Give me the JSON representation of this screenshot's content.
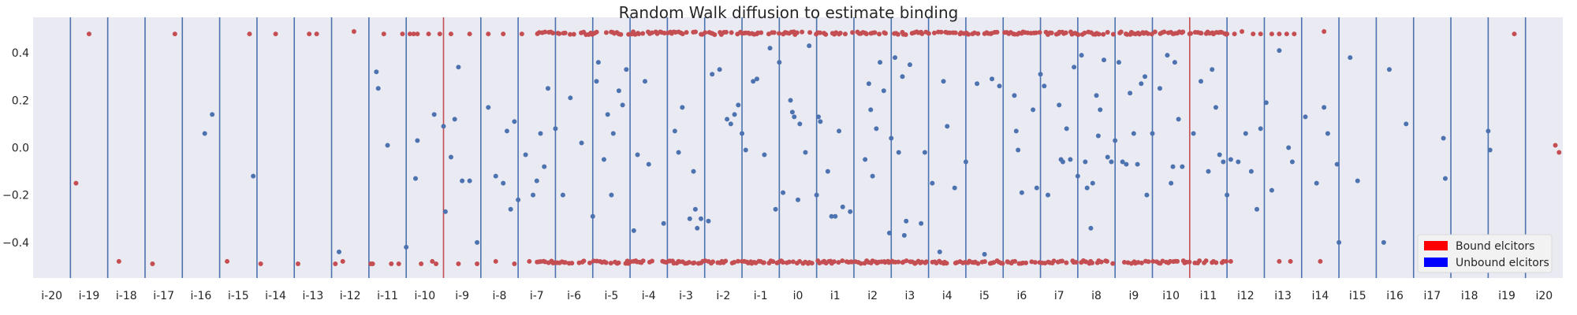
{
  "chart_data": {
    "type": "scatter",
    "title": "Random Walk diffusion to estimate binding",
    "xlabel": "",
    "ylabel": "",
    "xlim": [
      -20.5,
      20.5
    ],
    "ylim": [
      -0.55,
      0.55
    ],
    "grid": false,
    "legend_position": "bottom-right",
    "colors": {
      "background": "#eaeaf2",
      "bound": "#c44e52",
      "unbound": "#4c72b0",
      "boundary_line": "#4c72b0",
      "highlight_line": "#c44e52",
      "legend_bound": "#ff0000",
      "legend_unbound": "#0000ff"
    },
    "xtick_labels": [
      "i-20",
      "i-19",
      "i-18",
      "i-17",
      "i-16",
      "i-15",
      "i-14",
      "i-13",
      "i-12",
      "i-11",
      "i-10",
      "i-9",
      "i-8",
      "i-7",
      "i-6",
      "i-5",
      "i-4",
      "i-3",
      "i-2",
      "i-1",
      "i0",
      "i1",
      "i2",
      "i3",
      "i4",
      "i5",
      "i6",
      "i7",
      "i8",
      "i9",
      "i10",
      "i11",
      "i12",
      "i13",
      "i14",
      "i15",
      "i16",
      "i17",
      "i18",
      "i19",
      "i20"
    ],
    "yticks": [
      -0.4,
      -0.2,
      0.0,
      0.2,
      0.4
    ],
    "ytick_labels": [
      "−0.4",
      "−0.2",
      "0.0",
      "0.2",
      "0.4"
    ],
    "boundary_lines_x": [
      -19.5,
      -18.5,
      -17.5,
      -16.5,
      -15.5,
      -14.5,
      -13.5,
      -12.5,
      -11.5,
      -10.5,
      -8.5,
      -7.5,
      -6.5,
      -5.5,
      -4.5,
      -3.5,
      -2.5,
      -1.5,
      -0.5,
      0.5,
      1.5,
      2.5,
      3.5,
      4.5,
      5.5,
      6.5,
      7.5,
      8.5,
      9.5,
      11.5,
      12.5,
      13.5,
      14.5,
      15.5,
      16.5,
      17.5,
      18.5,
      19.5
    ],
    "highlight_lines_x": [
      -9.5,
      10.5
    ],
    "series": [
      {
        "name": "Bound elcitors",
        "color": "#c44e52",
        "points": [
          [
            -19.35,
            -0.15
          ],
          [
            -16.7,
            0.48
          ],
          [
            -14.4,
            -0.49
          ],
          [
            -14.0,
            0.48
          ],
          [
            -13.4,
            -0.49
          ],
          [
            -13.1,
            0.48
          ],
          [
            -12.9,
            0.48
          ],
          [
            -12.4,
            -0.49
          ],
          [
            -11.9,
            0.49
          ],
          [
            -11.45,
            -0.49
          ],
          [
            -11.4,
            -0.49
          ],
          [
            -10.9,
            -0.49
          ],
          [
            -10.6,
            0.48
          ],
          [
            -10.4,
            0.48
          ],
          [
            -10.3,
            0.48
          ],
          [
            -10.1,
            -0.49
          ],
          [
            -9.9,
            0.48
          ],
          [
            -9.8,
            -0.48
          ],
          [
            -9.6,
            0.48
          ],
          [
            -9.3,
            0.48
          ],
          [
            -9.1,
            -0.49
          ],
          [
            -8.8,
            0.48
          ],
          [
            -8.6,
            -0.49
          ],
          [
            -8.3,
            0.48
          ],
          [
            -8.1,
            -0.48
          ],
          [
            -7.9,
            0.48
          ],
          [
            -7.6,
            -0.49
          ],
          [
            -7.4,
            0.48
          ],
          [
            -7.2,
            -0.48
          ],
          [
            -19.0,
            0.48
          ],
          [
            -18.2,
            -0.48
          ],
          [
            -17.3,
            -0.49
          ],
          [
            -15.3,
            -0.48
          ],
          [
            -14.7,
            0.48
          ],
          [
            -12.2,
            -0.48
          ],
          [
            -11.1,
            0.48
          ],
          [
            -10.7,
            -0.49
          ],
          [
            -10.2,
            0.48
          ],
          [
            -9.7,
            -0.49
          ],
          [
            20.3,
            0.01
          ],
          [
            20.4,
            -0.02
          ],
          [
            19.2,
            0.48
          ],
          [
            14.1,
            0.49
          ],
          [
            14.0,
            -0.48
          ],
          [
            13.3,
            0.48
          ],
          [
            13.1,
            0.48
          ],
          [
            12.9,
            0.48
          ],
          [
            12.7,
            0.48
          ],
          [
            12.9,
            -0.48
          ],
          [
            13.2,
            -0.48
          ],
          [
            12.4,
            0.48
          ],
          [
            12.2,
            0.48
          ],
          [
            11.9,
            0.49
          ],
          [
            11.7,
            0.48
          ],
          [
            11.5,
            0.48
          ],
          [
            11.6,
            -0.48
          ],
          [
            11.4,
            -0.48
          ]
        ],
        "band_min_x": -7.0,
        "band_max_x": 11.5
      },
      {
        "name": "Unbound elcitors",
        "color": "#4c72b0",
        "points": [
          [
            -15.9,
            0.06
          ],
          [
            -15.7,
            0.14
          ],
          [
            -14.6,
            -0.12
          ],
          [
            -12.3,
            -0.44
          ],
          [
            -11.3,
            0.32
          ],
          [
            -11.25,
            0.25
          ],
          [
            -11.0,
            0.01
          ],
          [
            -10.5,
            -0.42
          ],
          [
            -10.2,
            0.03
          ],
          [
            -10.25,
            -0.13
          ],
          [
            -9.75,
            0.14
          ],
          [
            -9.5,
            0.09
          ],
          [
            -9.45,
            -0.27
          ],
          [
            -9.3,
            -0.04
          ],
          [
            -9.2,
            0.12
          ],
          [
            -9.1,
            0.34
          ],
          [
            -9.0,
            -0.14
          ],
          [
            -8.8,
            -0.14
          ],
          [
            -8.6,
            -0.4
          ],
          [
            -8.3,
            0.17
          ],
          [
            -8.1,
            -0.12
          ],
          [
            -7.9,
            -0.15
          ],
          [
            -7.8,
            0.07
          ],
          [
            -7.7,
            -0.26
          ],
          [
            -7.6,
            0.11
          ],
          [
            -7.5,
            -0.22
          ],
          [
            -7.3,
            -0.03
          ],
          [
            -7.1,
            -0.2
          ],
          [
            -7.0,
            -0.14
          ],
          [
            -6.9,
            0.06
          ],
          [
            -6.8,
            -0.08
          ],
          [
            -6.7,
            0.25
          ],
          [
            -6.5,
            0.08
          ],
          [
            -6.3,
            -0.2
          ],
          [
            -6.1,
            0.21
          ],
          [
            -5.8,
            0.02
          ],
          [
            -5.5,
            -0.29
          ],
          [
            -5.4,
            0.28
          ],
          [
            -5.35,
            0.36
          ],
          [
            -5.2,
            -0.05
          ],
          [
            -5.1,
            0.14
          ],
          [
            -5.0,
            -0.2
          ],
          [
            -4.95,
            0.06
          ],
          [
            -4.8,
            0.24
          ],
          [
            -4.7,
            0.18
          ],
          [
            -4.6,
            0.33
          ],
          [
            -4.4,
            -0.35
          ],
          [
            -4.3,
            -0.03
          ],
          [
            -4.1,
            0.28
          ],
          [
            -4.0,
            -0.07
          ],
          [
            -3.6,
            -0.32
          ],
          [
            -3.3,
            0.07
          ],
          [
            -3.2,
            -0.02
          ],
          [
            -3.1,
            0.17
          ],
          [
            -2.9,
            -0.3
          ],
          [
            -2.8,
            -0.1
          ],
          [
            -2.75,
            -0.26
          ],
          [
            -2.7,
            -0.34
          ],
          [
            -2.6,
            -0.3
          ],
          [
            -2.4,
            -0.31
          ],
          [
            -2.3,
            0.31
          ],
          [
            -2.1,
            0.33
          ],
          [
            -1.9,
            0.12
          ],
          [
            -1.8,
            0.1
          ],
          [
            -1.7,
            0.14
          ],
          [
            -1.6,
            0.18
          ],
          [
            -1.5,
            0.06
          ],
          [
            -1.4,
            -0.01
          ],
          [
            -1.2,
            0.28
          ],
          [
            -1.1,
            0.29
          ],
          [
            -0.9,
            -0.03
          ],
          [
            -0.75,
            0.42
          ],
          [
            -0.6,
            -0.26
          ],
          [
            -0.5,
            0.36
          ],
          [
            -0.4,
            -0.19
          ],
          [
            -0.2,
            0.2
          ],
          [
            -0.15,
            0.15
          ],
          [
            -0.1,
            0.13
          ],
          [
            0.0,
            -0.22
          ],
          [
            0.05,
            0.1
          ],
          [
            0.2,
            -0.02
          ],
          [
            0.3,
            0.43
          ],
          [
            0.5,
            -0.2
          ],
          [
            0.55,
            0.13
          ],
          [
            0.6,
            0.11
          ],
          [
            0.8,
            -0.1
          ],
          [
            0.9,
            -0.29
          ],
          [
            1.0,
            -0.29
          ],
          [
            1.1,
            0.07
          ],
          [
            1.2,
            -0.25
          ],
          [
            1.4,
            -0.27
          ],
          [
            1.8,
            -0.05
          ],
          [
            1.9,
            0.27
          ],
          [
            1.95,
            0.16
          ],
          [
            2.0,
            -0.12
          ],
          [
            2.1,
            0.08
          ],
          [
            2.2,
            0.36
          ],
          [
            2.3,
            0.24
          ],
          [
            2.45,
            -0.36
          ],
          [
            2.5,
            0.04
          ],
          [
            2.6,
            0.38
          ],
          [
            2.7,
            -0.02
          ],
          [
            2.8,
            0.3
          ],
          [
            2.85,
            -0.37
          ],
          [
            2.9,
            -0.31
          ],
          [
            3.0,
            0.35
          ],
          [
            3.3,
            -0.32
          ],
          [
            3.4,
            -0.02
          ],
          [
            3.6,
            -0.15
          ],
          [
            3.8,
            -0.44
          ],
          [
            3.9,
            0.28
          ],
          [
            4.0,
            0.09
          ],
          [
            4.2,
            -0.17
          ],
          [
            4.5,
            -0.06
          ],
          [
            4.8,
            0.27
          ],
          [
            5.0,
            -0.45
          ],
          [
            5.2,
            0.29
          ],
          [
            5.4,
            0.26
          ],
          [
            5.8,
            0.22
          ],
          [
            5.85,
            0.07
          ],
          [
            5.9,
            -0.01
          ],
          [
            6.0,
            -0.19
          ],
          [
            6.3,
            0.16
          ],
          [
            6.4,
            -0.17
          ],
          [
            6.5,
            0.31
          ],
          [
            6.6,
            0.26
          ],
          [
            6.7,
            -0.2
          ],
          [
            7.0,
            0.18
          ],
          [
            7.05,
            -0.05
          ],
          [
            7.1,
            -0.06
          ],
          [
            7.2,
            0.08
          ],
          [
            7.3,
            -0.05
          ],
          [
            7.4,
            0.34
          ],
          [
            7.5,
            -0.12
          ],
          [
            7.6,
            0.39
          ],
          [
            7.7,
            -0.06
          ],
          [
            7.75,
            -0.17
          ],
          [
            7.85,
            -0.34
          ],
          [
            7.9,
            -0.15
          ],
          [
            8.0,
            0.22
          ],
          [
            8.05,
            0.05
          ],
          [
            8.1,
            0.16
          ],
          [
            8.2,
            0.37
          ],
          [
            8.3,
            -0.04
          ],
          [
            8.4,
            -0.06
          ],
          [
            8.5,
            0.03
          ],
          [
            8.6,
            0.36
          ],
          [
            8.7,
            -0.06
          ],
          [
            8.8,
            -0.07
          ],
          [
            8.9,
            0.23
          ],
          [
            9.0,
            0.06
          ],
          [
            9.1,
            -0.07
          ],
          [
            9.2,
            0.27
          ],
          [
            9.3,
            0.3
          ],
          [
            9.35,
            -0.2
          ],
          [
            9.5,
            0.06
          ],
          [
            9.7,
            0.25
          ],
          [
            9.9,
            0.39
          ],
          [
            10.0,
            -0.15
          ],
          [
            10.05,
            -0.08
          ],
          [
            10.1,
            0.36
          ],
          [
            10.2,
            0.12
          ],
          [
            10.3,
            -0.08
          ],
          [
            10.6,
            0.06
          ],
          [
            10.8,
            0.28
          ],
          [
            11.0,
            -0.1
          ],
          [
            11.1,
            0.33
          ],
          [
            11.2,
            0.17
          ],
          [
            11.3,
            -0.03
          ],
          [
            11.4,
            -0.06
          ],
          [
            11.5,
            -0.2
          ],
          [
            11.6,
            -0.05
          ],
          [
            11.8,
            -0.06
          ],
          [
            12.0,
            0.06
          ],
          [
            12.15,
            -0.1
          ],
          [
            12.3,
            -0.26
          ],
          [
            12.4,
            0.08
          ],
          [
            12.55,
            0.19
          ],
          [
            12.7,
            -0.18
          ],
          [
            12.9,
            0.41
          ],
          [
            13.15,
            0.0
          ],
          [
            13.25,
            -0.06
          ],
          [
            13.6,
            0.13
          ],
          [
            13.9,
            -0.15
          ],
          [
            14.1,
            0.17
          ],
          [
            14.2,
            0.06
          ],
          [
            14.45,
            -0.07
          ],
          [
            14.5,
            -0.4
          ],
          [
            14.8,
            0.38
          ],
          [
            15.0,
            -0.14
          ],
          [
            15.7,
            -0.4
          ],
          [
            15.85,
            0.33
          ],
          [
            16.3,
            0.1
          ],
          [
            17.3,
            0.04
          ],
          [
            17.35,
            -0.13
          ],
          [
            18.5,
            0.07
          ],
          [
            18.55,
            -0.01
          ]
        ]
      }
    ]
  }
}
